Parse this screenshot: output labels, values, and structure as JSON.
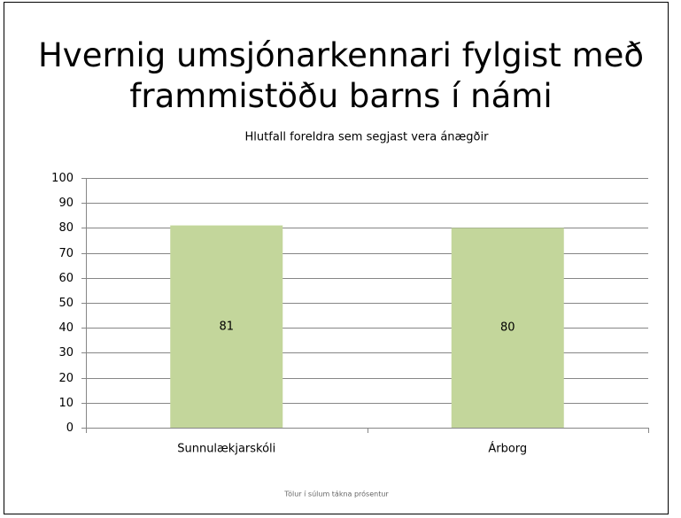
{
  "chart_data": {
    "type": "bar",
    "title": "Hvernig umsjónarkennari fylgist með frammistöðu barns í námi",
    "subtitle": "Hlutfall foreldra sem segjast vera ánægðir",
    "annotation": "Tölur í súlum tákna prósentur",
    "categories": [
      "Sunnulækjarskóli",
      "Árborg"
    ],
    "values": [
      81,
      80
    ],
    "color": "#c3d69b",
    "ylim": [
      0,
      100
    ],
    "yticks": [
      0,
      10,
      20,
      30,
      40,
      50,
      60,
      70,
      80,
      90,
      100
    ],
    "grid": true
  }
}
